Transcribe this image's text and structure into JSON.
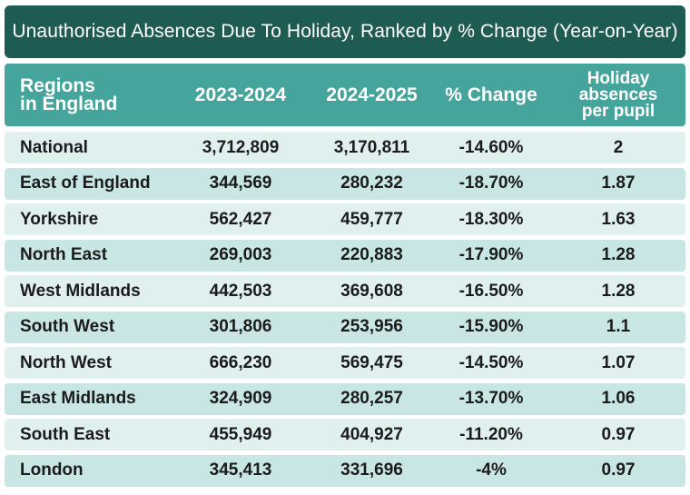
{
  "chart_data": {
    "type": "table",
    "title": "Unauthorised Absences Due To Holiday, Ranked by % Change (Year-on-Year)",
    "columns": [
      "Regions\nin England",
      "2023-2024",
      "2024-2025",
      "% Change",
      "Holiday\nabsences\nper pupil"
    ],
    "rows": [
      [
        "National",
        "3,712,809",
        "3,170,811",
        "-14.60%",
        "2"
      ],
      [
        "East of England",
        "344,569",
        "280,232",
        "-18.70%",
        "1.87"
      ],
      [
        "Yorkshire",
        "562,427",
        "459,777",
        "-18.30%",
        "1.63"
      ],
      [
        "North East",
        "269,003",
        "220,883",
        "-17.90%",
        "1.28"
      ],
      [
        "West Midlands",
        "442,503",
        "369,608",
        "-16.50%",
        "1.28"
      ],
      [
        "South West",
        "301,806",
        "253,956",
        "-15.90%",
        "1.1"
      ],
      [
        "North West",
        "666,230",
        "569,475",
        "-14.50%",
        "1.07"
      ],
      [
        "East Midlands",
        "324,909",
        "280,257",
        "-13.70%",
        "1.06"
      ],
      [
        "South East",
        "455,949",
        "404,927",
        "-11.20%",
        "0.97"
      ],
      [
        "London",
        "345,413",
        "331,696",
        "-4%",
        "0.97"
      ]
    ]
  },
  "colors": {
    "title_bg": "#1e5b52",
    "header_bg": "#45a49b",
    "row_light": "#e0f0ef",
    "row_dark": "#c8e6e3"
  }
}
